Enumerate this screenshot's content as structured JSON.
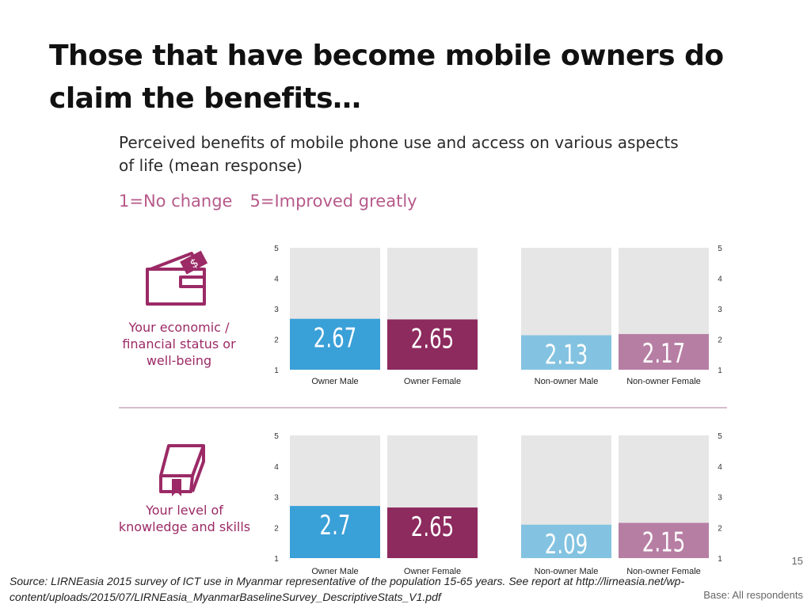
{
  "slide": {
    "title": "Those that have become mobile owners do claim the benefits…",
    "page_number": "15",
    "source": "Source: LIRNEasia 2015 survey of ICT use in Myanmar representative of the population 15-65 years.  See report at http://lirneasia.net/wp-content/uploads/2015/07/LIRNEasia_MyanmarBaselineSurvey_DescriptiveStats_V1.pdf",
    "base": "Base: All respondents"
  },
  "chart_data": {
    "type": "bar",
    "title": "Perceived benefits of mobile phone use and access on various aspects of life (mean response)",
    "scale_note": [
      "1=No change",
      "5=Improved greatly"
    ],
    "categories": [
      "Owner Male",
      "Owner Female",
      "Non-owner Male",
      "Non-owner Female"
    ],
    "ylim": [
      1,
      5
    ],
    "yticks": [
      1,
      2,
      3,
      4,
      5
    ],
    "bar_colors": [
      "#3aa0d8",
      "#8d2a5e",
      "#83c3e1",
      "#b77ea4"
    ],
    "panels": [
      {
        "label": "Your economic / financial status or well-being",
        "icon": "wallet-icon",
        "values": [
          2.67,
          2.65,
          2.13,
          2.17
        ],
        "value_labels": [
          "2.67",
          "2.65",
          "2.13",
          "2.17"
        ]
      },
      {
        "label": "Your level of knowledge and skills",
        "icon": "book-icon",
        "values": [
          2.7,
          2.65,
          2.09,
          2.15
        ],
        "value_labels": [
          "2.7",
          "2.65",
          "2.09",
          "2.15"
        ]
      }
    ]
  }
}
